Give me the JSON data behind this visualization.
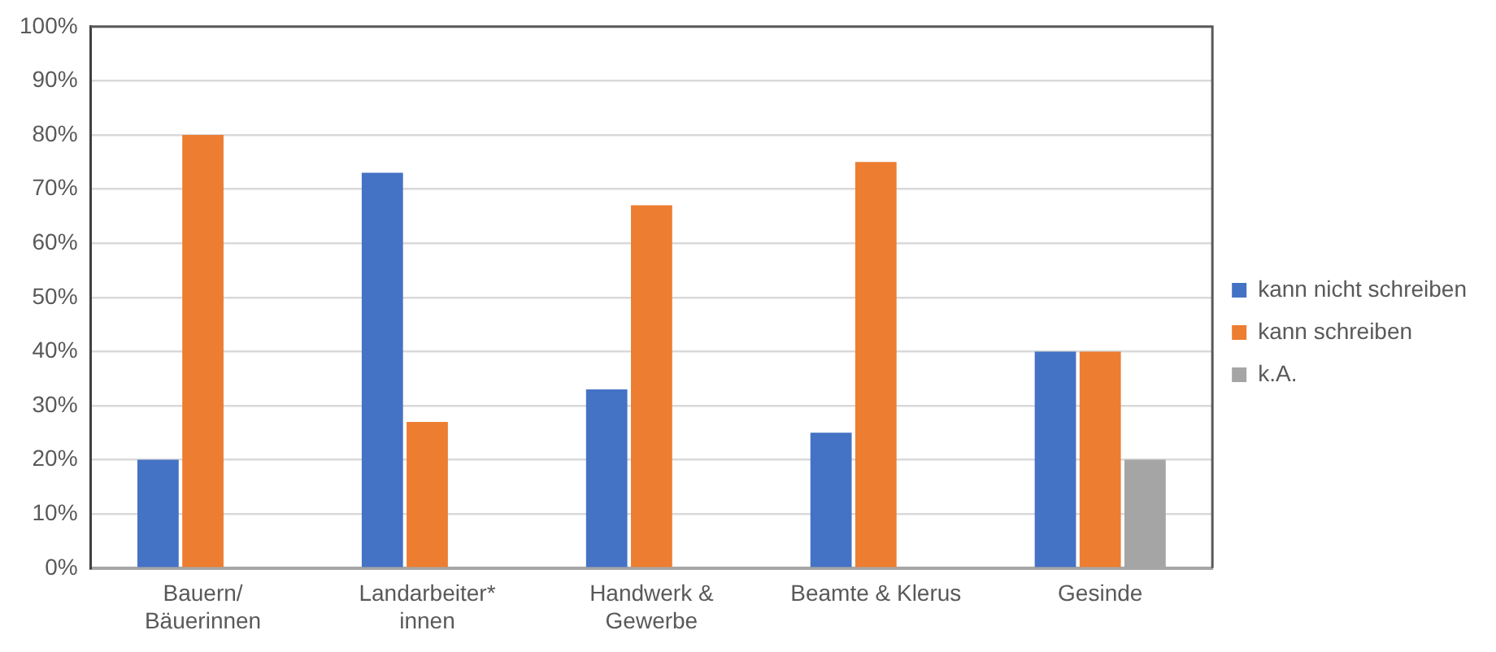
{
  "chart_data": {
    "type": "bar",
    "categories": [
      "Bauern/Bäuerinnen",
      "Landarbeiter*innen",
      "Handwerk & Gewerbe",
      "Beamte & Klerus",
      "Gesinde"
    ],
    "series": [
      {
        "name": "kann nicht schreiben",
        "color": "#4472c4",
        "values": [
          20,
          73,
          33,
          25,
          40
        ]
      },
      {
        "name": "kann schreiben",
        "color": "#ed7d31",
        "values": [
          80,
          27,
          67,
          75,
          40
        ]
      },
      {
        "name": "k.A.",
        "color": "#a5a5a5",
        "values": [
          null,
          null,
          null,
          null,
          20
        ]
      }
    ],
    "ylim": [
      0,
      100
    ],
    "yticks": [
      {
        "value": 0,
        "label": "0%"
      },
      {
        "value": 10,
        "label": "10%"
      },
      {
        "value": 20,
        "label": "20%"
      },
      {
        "value": 30,
        "label": "30%"
      },
      {
        "value": 40,
        "label": "40%"
      },
      {
        "value": 50,
        "label": "50%"
      },
      {
        "value": 60,
        "label": "60%"
      },
      {
        "value": 70,
        "label": "70%"
      },
      {
        "value": 80,
        "label": "80%"
      },
      {
        "value": 90,
        "label": "90%"
      },
      {
        "value": 100,
        "label": "100%"
      }
    ],
    "grid": "y",
    "legend": "right"
  }
}
